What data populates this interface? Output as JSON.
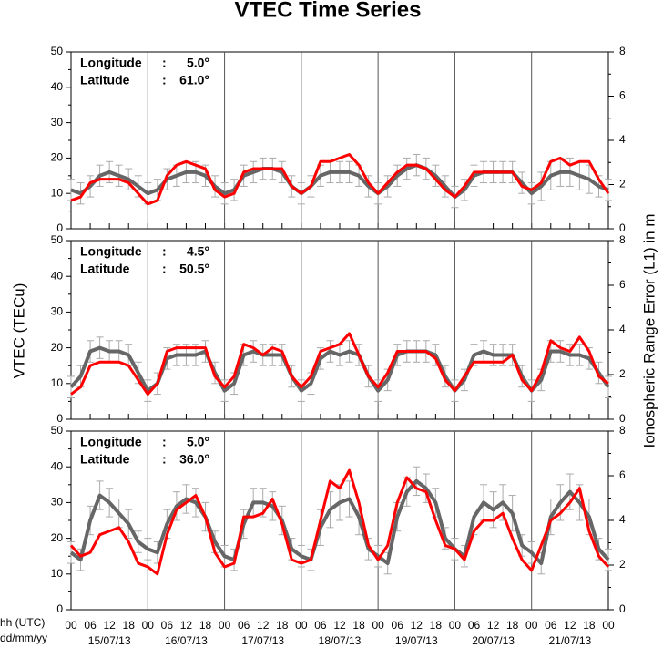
{
  "title": "VTEC Time Series",
  "x_label": "hh (UTC)",
  "x_label2": "dd/mm/yy",
  "chart_data": [
    {
      "type": "line",
      "annotations": [
        [
          "Longitude",
          ":",
          "5.0°"
        ],
        [
          "Latitude",
          ":",
          "61.0°"
        ]
      ],
      "x": [
        0,
        3,
        6,
        9,
        12,
        15,
        18,
        21,
        24,
        27,
        30,
        33,
        36,
        39,
        42,
        45,
        48,
        51,
        54,
        57,
        60,
        63,
        66,
        69,
        72,
        75,
        78,
        81,
        84,
        87,
        90,
        93,
        96,
        99,
        102,
        105,
        108,
        111,
        114,
        117,
        120,
        123,
        126,
        129,
        132,
        135,
        138,
        141,
        144,
        147,
        150,
        153,
        156,
        159,
        162,
        165,
        168
      ],
      "xlim": [
        0,
        168
      ],
      "xticks": [
        0,
        6,
        12,
        18,
        24,
        30,
        36,
        42,
        48,
        54,
        60,
        66,
        72,
        78,
        84,
        90,
        96,
        102,
        108,
        114,
        120,
        126,
        132,
        138,
        144,
        150,
        156,
        162,
        168
      ],
      "ylim": [
        0,
        50
      ],
      "yticks": [
        0,
        10,
        20,
        30,
        40,
        50
      ],
      "y2lim": [
        0,
        8
      ],
      "y2ticks": [
        0,
        2,
        4,
        6,
        8
      ],
      "series": [
        {
          "color": "#666666",
          "values": [
            11,
            10,
            12,
            15,
            16,
            15,
            14,
            12,
            10,
            11,
            14,
            15,
            16,
            16,
            15,
            12,
            10,
            11,
            15,
            16,
            17,
            17,
            16,
            12,
            10,
            12,
            15,
            16,
            16,
            16,
            15,
            12,
            10,
            12,
            15,
            17,
            18,
            17,
            15,
            12,
            9,
            11,
            15,
            16,
            16,
            16,
            16,
            13,
            10,
            12,
            15,
            16,
            16,
            15,
            14,
            12,
            11
          ],
          "errors": [
            3,
            3,
            3,
            3,
            3,
            3,
            3,
            3,
            3,
            3,
            3,
            3,
            3,
            3,
            3,
            3,
            3,
            3,
            3,
            3,
            3,
            3,
            3,
            3,
            3,
            3,
            3,
            3,
            3,
            3,
            3,
            3,
            3,
            3,
            3,
            3,
            3,
            3,
            3,
            3,
            3,
            3,
            3,
            3,
            3,
            3,
            3,
            3,
            3,
            4,
            4,
            4,
            4,
            4,
            4,
            3,
            3
          ]
        },
        {
          "color": "#ff0000",
          "values": [
            8,
            9,
            13,
            14,
            14,
            14,
            13,
            10,
            7,
            8,
            15,
            18,
            19,
            18,
            17,
            11,
            9,
            10,
            16,
            17,
            17,
            17,
            17,
            12,
            10,
            12,
            19,
            19,
            20,
            21,
            18,
            13,
            10,
            13,
            16,
            18,
            18,
            17,
            14,
            11,
            9,
            12,
            16,
            16,
            16,
            16,
            16,
            12,
            11,
            13,
            19,
            20,
            18,
            19,
            19,
            14,
            10
          ]
        }
      ]
    },
    {
      "type": "line",
      "annotations": [
        [
          "Longitude",
          ":",
          "4.5°"
        ],
        [
          "Latitude",
          ":",
          "50.5°"
        ]
      ],
      "ylabel": "VTEC (TECu)",
      "y2label": "Ionospheric Range Error (L1) in m",
      "x": [
        0,
        3,
        6,
        9,
        12,
        15,
        18,
        21,
        24,
        27,
        30,
        33,
        36,
        39,
        42,
        45,
        48,
        51,
        54,
        57,
        60,
        63,
        66,
        69,
        72,
        75,
        78,
        81,
        84,
        87,
        90,
        93,
        96,
        99,
        102,
        105,
        108,
        111,
        114,
        117,
        120,
        123,
        126,
        129,
        132,
        135,
        138,
        141,
        144,
        147,
        150,
        153,
        156,
        159,
        162,
        165,
        168
      ],
      "xlim": [
        0,
        168
      ],
      "xticks": [
        0,
        6,
        12,
        18,
        24,
        30,
        36,
        42,
        48,
        54,
        60,
        66,
        72,
        78,
        84,
        90,
        96,
        102,
        108,
        114,
        120,
        126,
        132,
        138,
        144,
        150,
        156,
        162,
        168
      ],
      "ylim": [
        0,
        50
      ],
      "yticks": [
        0,
        10,
        20,
        30,
        40,
        50
      ],
      "y2lim": [
        0,
        8
      ],
      "y2ticks": [
        0,
        2,
        4,
        6,
        8
      ],
      "series": [
        {
          "color": "#666666",
          "values": [
            9,
            12,
            19,
            20,
            19,
            19,
            18,
            13,
            8,
            10,
            17,
            18,
            18,
            18,
            19,
            13,
            8,
            10,
            18,
            19,
            18,
            18,
            18,
            12,
            8,
            10,
            17,
            19,
            18,
            19,
            18,
            12,
            8,
            11,
            18,
            19,
            19,
            19,
            18,
            12,
            8,
            11,
            18,
            19,
            18,
            18,
            18,
            12,
            8,
            11,
            19,
            19,
            18,
            18,
            17,
            13,
            9
          ],
          "errors": [
            3,
            3,
            3,
            3,
            3,
            3,
            3,
            3,
            3,
            3,
            3,
            3,
            3,
            3,
            3,
            3,
            3,
            3,
            3,
            3,
            3,
            3,
            3,
            3,
            3,
            3,
            3,
            3,
            3,
            3,
            3,
            3,
            3,
            3,
            3,
            3,
            3,
            3,
            3,
            3,
            3,
            3,
            3,
            3,
            3,
            3,
            3,
            3,
            3,
            3,
            3,
            3,
            3,
            3,
            3,
            3,
            3
          ]
        },
        {
          "color": "#ff0000",
          "values": [
            7,
            9,
            15,
            16,
            16,
            16,
            15,
            11,
            7,
            10,
            19,
            20,
            20,
            20,
            20,
            12,
            9,
            12,
            21,
            20,
            18,
            20,
            19,
            12,
            9,
            12,
            19,
            20,
            21,
            24,
            18,
            12,
            9,
            13,
            19,
            19,
            19,
            19,
            17,
            11,
            8,
            12,
            16,
            16,
            16,
            16,
            18,
            11,
            8,
            13,
            22,
            20,
            19,
            23,
            19,
            12,
            10
          ]
        }
      ]
    },
    {
      "type": "line",
      "annotations": [
        [
          "Longitude",
          ":",
          "5.0°"
        ],
        [
          "Latitude",
          ":",
          "36.0°"
        ]
      ],
      "x": [
        0,
        3,
        6,
        9,
        12,
        15,
        18,
        21,
        24,
        27,
        30,
        33,
        36,
        39,
        42,
        45,
        48,
        51,
        54,
        57,
        60,
        63,
        66,
        69,
        72,
        75,
        78,
        81,
        84,
        87,
        90,
        93,
        96,
        99,
        102,
        105,
        108,
        111,
        114,
        117,
        120,
        123,
        126,
        129,
        132,
        135,
        138,
        141,
        144,
        147,
        150,
        153,
        156,
        159,
        162,
        165,
        168
      ],
      "xlim": [
        0,
        168
      ],
      "xticks": [
        {
          "value": 0,
          "label": "00"
        },
        {
          "value": 6,
          "label": "06"
        },
        {
          "value": 12,
          "label": "12"
        },
        {
          "value": 18,
          "label": "18"
        },
        {
          "value": 24,
          "label": "00"
        },
        {
          "value": 30,
          "label": "06"
        },
        {
          "value": 36,
          "label": "12"
        },
        {
          "value": 42,
          "label": "18"
        },
        {
          "value": 48,
          "label": "00"
        },
        {
          "value": 54,
          "label": "06"
        },
        {
          "value": 60,
          "label": "12"
        },
        {
          "value": 66,
          "label": "18"
        },
        {
          "value": 72,
          "label": "00"
        },
        {
          "value": 78,
          "label": "06"
        },
        {
          "value": 84,
          "label": "12"
        },
        {
          "value": 90,
          "label": "18"
        },
        {
          "value": 96,
          "label": "00"
        },
        {
          "value": 102,
          "label": "06"
        },
        {
          "value": 108,
          "label": "12"
        },
        {
          "value": 114,
          "label": "18"
        },
        {
          "value": 120,
          "label": "00"
        },
        {
          "value": 126,
          "label": "06"
        },
        {
          "value": 132,
          "label": "12"
        },
        {
          "value": 138,
          "label": "18"
        },
        {
          "value": 144,
          "label": "00"
        },
        {
          "value": 150,
          "label": "06"
        },
        {
          "value": 156,
          "label": "12"
        },
        {
          "value": 162,
          "label": "18"
        },
        {
          "value": 168,
          "label": "00"
        }
      ],
      "date_labels": [
        {
          "value": 12,
          "label": "15/07/13"
        },
        {
          "value": 36,
          "label": "16/07/13"
        },
        {
          "value": 60,
          "label": "17/07/13"
        },
        {
          "value": 84,
          "label": "18/07/13"
        },
        {
          "value": 108,
          "label": "19/07/13"
        },
        {
          "value": 132,
          "label": "20/07/13"
        },
        {
          "value": 156,
          "label": "21/07/13"
        }
      ],
      "ylim": [
        0,
        50
      ],
      "yticks": [
        0,
        10,
        20,
        30,
        40,
        50
      ],
      "y2lim": [
        0,
        8
      ],
      "y2ticks": [
        0,
        2,
        4,
        6,
        8
      ],
      "series": [
        {
          "color": "#666666",
          "values": [
            16,
            14,
            25,
            32,
            30,
            27,
            24,
            19,
            17,
            16,
            24,
            29,
            31,
            30,
            26,
            19,
            15,
            14,
            24,
            30,
            30,
            29,
            25,
            17,
            15,
            14,
            23,
            28,
            30,
            31,
            26,
            17,
            15,
            13,
            26,
            33,
            36,
            34,
            30,
            20,
            17,
            15,
            26,
            30,
            28,
            30,
            27,
            18,
            16,
            13,
            26,
            30,
            33,
            30,
            26,
            17,
            14
          ],
          "errors": [
            3,
            3,
            4,
            4,
            4,
            4,
            4,
            3,
            3,
            3,
            4,
            4,
            4,
            4,
            4,
            3,
            3,
            3,
            4,
            4,
            4,
            4,
            4,
            3,
            3,
            3,
            5,
            5,
            5,
            5,
            5,
            3,
            3,
            3,
            4,
            4,
            4,
            4,
            4,
            3,
            3,
            3,
            5,
            5,
            5,
            5,
            5,
            3,
            3,
            3,
            5,
            5,
            5,
            5,
            5,
            3,
            3
          ]
        },
        {
          "color": "#ff0000",
          "values": [
            18,
            15,
            16,
            21,
            22,
            23,
            19,
            13,
            12,
            10,
            21,
            28,
            30,
            32,
            26,
            16,
            12,
            13,
            26,
            26,
            27,
            31,
            24,
            14,
            13,
            14,
            25,
            36,
            34,
            39,
            30,
            18,
            14,
            18,
            30,
            37,
            34,
            33,
            25,
            18,
            17,
            14,
            22,
            25,
            25,
            27,
            20,
            14,
            11,
            18,
            25,
            27,
            30,
            34,
            22,
            15,
            12
          ]
        }
      ]
    }
  ]
}
